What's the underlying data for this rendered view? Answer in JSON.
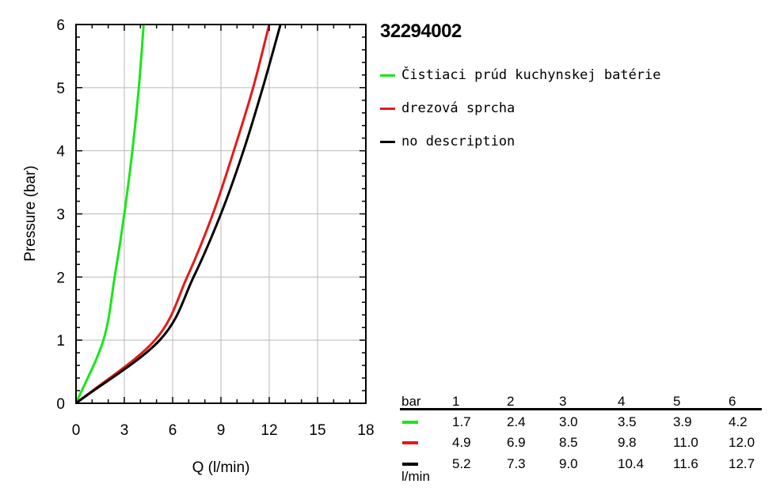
{
  "chart_data": {
    "type": "line",
    "title": "32294002",
    "xlabel": "Q (l/min)",
    "ylabel": "Pressure (bar)",
    "xlim": [
      0,
      18
    ],
    "ylim": [
      0,
      6
    ],
    "x_ticks": [
      "0",
      "3",
      "6",
      "9",
      "12",
      "15",
      "18"
    ],
    "y_ticks": [
      "0",
      "1",
      "2",
      "3",
      "4",
      "5",
      "6"
    ],
    "grid": true,
    "legend_position": "right",
    "series": [
      {
        "name": "Čistiaci prúd kuchynskej batérie",
        "color": "#19e619",
        "points": [
          [
            0,
            0
          ],
          [
            1.7,
            1
          ],
          [
            2.4,
            2
          ],
          [
            3.0,
            3
          ],
          [
            3.5,
            4
          ],
          [
            3.9,
            5
          ],
          [
            4.2,
            6
          ]
        ]
      },
      {
        "name": "drezová sprcha",
        "color": "#e61919",
        "points": [
          [
            0,
            0
          ],
          [
            4.9,
            1
          ],
          [
            6.9,
            2
          ],
          [
            8.5,
            3
          ],
          [
            9.8,
            4
          ],
          [
            11.0,
            5
          ],
          [
            12.0,
            6
          ]
        ]
      },
      {
        "name": "no description",
        "color": "#000000",
        "points": [
          [
            0,
            0
          ],
          [
            5.2,
            1
          ],
          [
            7.3,
            2
          ],
          [
            9.0,
            3
          ],
          [
            10.4,
            4
          ],
          [
            11.6,
            5
          ],
          [
            12.7,
            6
          ]
        ]
      }
    ]
  },
  "table": {
    "header_label": "bar",
    "unit_label": "l/min",
    "pressures": [
      "1",
      "2",
      "3",
      "4",
      "5",
      "6"
    ],
    "rows": [
      {
        "color": "#19e619",
        "values": [
          "1.7",
          "2.4",
          "3.0",
          "3.5",
          "3.9",
          "4.2"
        ]
      },
      {
        "color": "#e61919",
        "values": [
          "4.9",
          "6.9",
          "8.5",
          "9.8",
          "11.0",
          "12.0"
        ]
      },
      {
        "color": "#000000",
        "values": [
          "5.2",
          "7.3",
          "9.0",
          "10.4",
          "11.6",
          "12.7"
        ]
      }
    ]
  }
}
